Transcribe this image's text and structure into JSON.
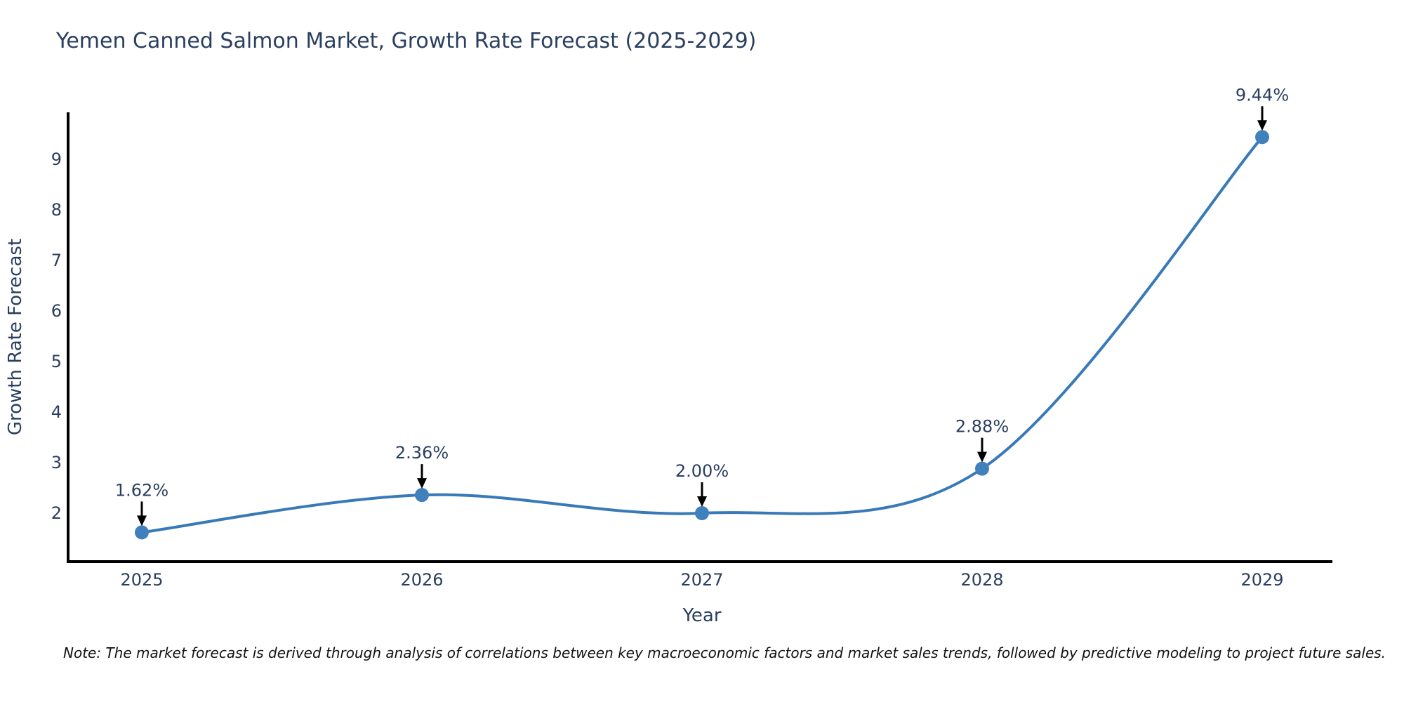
{
  "chart_data": {
    "type": "line",
    "title": "Yemen Canned Salmon Market, Growth Rate Forecast (2025-2029)",
    "xlabel": "Year",
    "ylabel": "Growth Rate Forecast",
    "categories": [
      "2025",
      "2026",
      "2027",
      "2028",
      "2029"
    ],
    "values": [
      1.62,
      2.36,
      2.0,
      2.88,
      9.44
    ],
    "point_labels": [
      "1.62%",
      "2.36%",
      "2.00%",
      "2.88%",
      "9.44%"
    ],
    "y_ticks": [
      2,
      3,
      4,
      5,
      6,
      7,
      8,
      9
    ],
    "ylim": [
      1.04,
      9.93
    ],
    "line_shape": "spline",
    "grid": false,
    "legend_position": "none",
    "line_color": "#3879b8",
    "marker_color": "#3f80bd",
    "axis_color": "#000000",
    "text_color": "#2a3f5f",
    "arrow_color": "#000000",
    "background_color": "#ffffff"
  },
  "note": {
    "text": "Note: The market forecast is derived through analysis of correlations between key macroeconomic factors and market sales trends, followed by predictive modeling to project future sales."
  }
}
